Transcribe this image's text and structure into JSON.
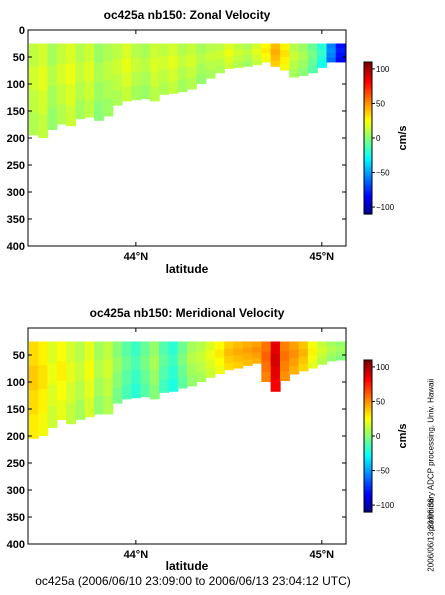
{
  "chart_data": [
    {
      "type": "heatmap",
      "title": "oc425a nb150: Zonal Velocity",
      "xlabel": "latitude",
      "ylabel": "",
      "x_ticks": [
        "44°N",
        "45°N"
      ],
      "y_ticks": [
        "0",
        "50",
        "100",
        "150",
        "200",
        "250",
        "300",
        "350",
        "400"
      ],
      "ylim": [
        400,
        0
      ],
      "colorbar": {
        "label": "cm/s",
        "ticks": [
          "100",
          "50",
          "0",
          "−50",
          "−100"
        ],
        "range": [
          -110,
          110
        ]
      },
      "columns": [
        {
          "lat": 43.45,
          "top": 25,
          "bottom": 195,
          "u": 14
        },
        {
          "lat": 43.5,
          "top": 25,
          "bottom": 200,
          "u": 18
        },
        {
          "lat": 43.55,
          "top": 25,
          "bottom": 185,
          "u": 8
        },
        {
          "lat": 43.6,
          "top": 25,
          "bottom": 175,
          "u": 15
        },
        {
          "lat": 43.65,
          "top": 25,
          "bottom": 178,
          "u": 20
        },
        {
          "lat": 43.7,
          "top": 25,
          "bottom": 165,
          "u": 11
        },
        {
          "lat": 43.75,
          "top": 25,
          "bottom": 162,
          "u": 17
        },
        {
          "lat": 43.8,
          "top": 25,
          "bottom": 168,
          "u": 6
        },
        {
          "lat": 43.85,
          "top": 25,
          "bottom": 160,
          "u": 10
        },
        {
          "lat": 43.9,
          "top": 25,
          "bottom": 140,
          "u": 13
        },
        {
          "lat": 43.95,
          "top": 25,
          "bottom": 132,
          "u": 19
        },
        {
          "lat": 44.0,
          "top": 25,
          "bottom": 130,
          "u": 12
        },
        {
          "lat": 44.05,
          "top": 25,
          "bottom": 128,
          "u": 9
        },
        {
          "lat": 44.1,
          "top": 25,
          "bottom": 132,
          "u": 16
        },
        {
          "lat": 44.15,
          "top": 25,
          "bottom": 120,
          "u": 14
        },
        {
          "lat": 44.2,
          "top": 25,
          "bottom": 118,
          "u": 18
        },
        {
          "lat": 44.25,
          "top": 25,
          "bottom": 115,
          "u": 11
        },
        {
          "lat": 44.3,
          "top": 25,
          "bottom": 110,
          "u": 15
        },
        {
          "lat": 44.35,
          "top": 25,
          "bottom": 100,
          "u": 8
        },
        {
          "lat": 44.4,
          "top": 25,
          "bottom": 90,
          "u": 12
        },
        {
          "lat": 44.45,
          "top": 25,
          "bottom": 80,
          "u": 13
        },
        {
          "lat": 44.5,
          "top": 25,
          "bottom": 72,
          "u": 20
        },
        {
          "lat": 44.55,
          "top": 25,
          "bottom": 70,
          "u": 14
        },
        {
          "lat": 44.6,
          "top": 25,
          "bottom": 68,
          "u": 10
        },
        {
          "lat": 44.65,
          "top": 25,
          "bottom": 65,
          "u": 18
        },
        {
          "lat": 44.7,
          "top": 25,
          "bottom": 60,
          "u": 28
        },
        {
          "lat": 44.75,
          "top": 25,
          "bottom": 68,
          "u": 42
        },
        {
          "lat": 44.8,
          "top": 25,
          "bottom": 75,
          "u": 30
        },
        {
          "lat": 44.85,
          "top": 25,
          "bottom": 88,
          "u": 12
        },
        {
          "lat": 44.9,
          "top": 25,
          "bottom": 85,
          "u": 6
        },
        {
          "lat": 44.95,
          "top": 25,
          "bottom": 80,
          "u": -5
        },
        {
          "lat": 45.0,
          "top": 25,
          "bottom": 70,
          "u": -20
        },
        {
          "lat": 45.05,
          "top": 25,
          "bottom": 60,
          "u": -55
        },
        {
          "lat": 45.1,
          "top": 25,
          "bottom": 60,
          "u": -80
        }
      ]
    },
    {
      "type": "heatmap",
      "title": "oc425a nb150: Meridional Velocity",
      "xlabel": "latitude",
      "ylabel": "",
      "x_ticks": [
        "44°N",
        "45°N"
      ],
      "y_ticks": [
        "50",
        "100",
        "150",
        "200",
        "250",
        "300",
        "350",
        "400"
      ],
      "ylim": [
        400,
        0
      ],
      "colorbar": {
        "label": "cm/s",
        "ticks": [
          "100",
          "50",
          "0",
          "−50",
          "−100"
        ],
        "range": [
          -110,
          110
        ]
      },
      "columns": [
        {
          "lat": 43.45,
          "top": 25,
          "bottom": 205,
          "v": 35
        },
        {
          "lat": 43.5,
          "top": 25,
          "bottom": 200,
          "v": 30
        },
        {
          "lat": 43.55,
          "top": 25,
          "bottom": 185,
          "v": 20
        },
        {
          "lat": 43.6,
          "top": 25,
          "bottom": 170,
          "v": 26
        },
        {
          "lat": 43.65,
          "top": 25,
          "bottom": 178,
          "v": 18
        },
        {
          "lat": 43.7,
          "top": 25,
          "bottom": 170,
          "v": 12
        },
        {
          "lat": 43.75,
          "top": 25,
          "bottom": 165,
          "v": 22
        },
        {
          "lat": 43.8,
          "top": 25,
          "bottom": 160,
          "v": 8
        },
        {
          "lat": 43.85,
          "top": 25,
          "bottom": 160,
          "v": 14
        },
        {
          "lat": 43.9,
          "top": 25,
          "bottom": 140,
          "v": 2
        },
        {
          "lat": 43.95,
          "top": 25,
          "bottom": 132,
          "v": -8
        },
        {
          "lat": 44.0,
          "top": 25,
          "bottom": 130,
          "v": -15
        },
        {
          "lat": 44.05,
          "top": 25,
          "bottom": 128,
          "v": -5
        },
        {
          "lat": 44.1,
          "top": 25,
          "bottom": 132,
          "v": 5
        },
        {
          "lat": 44.15,
          "top": 25,
          "bottom": 120,
          "v": -10
        },
        {
          "lat": 44.2,
          "top": 25,
          "bottom": 118,
          "v": -18
        },
        {
          "lat": 44.25,
          "top": 25,
          "bottom": 112,
          "v": -4
        },
        {
          "lat": 44.3,
          "top": 25,
          "bottom": 108,
          "v": 8
        },
        {
          "lat": 44.35,
          "top": 25,
          "bottom": 100,
          "v": 12
        },
        {
          "lat": 44.4,
          "top": 25,
          "bottom": 92,
          "v": 20
        },
        {
          "lat": 44.45,
          "top": 25,
          "bottom": 85,
          "v": 28
        },
        {
          "lat": 44.5,
          "top": 25,
          "bottom": 78,
          "v": 38
        },
        {
          "lat": 44.55,
          "top": 25,
          "bottom": 75,
          "v": 42
        },
        {
          "lat": 44.6,
          "top": 25,
          "bottom": 70,
          "v": 45
        },
        {
          "lat": 44.65,
          "top": 25,
          "bottom": 66,
          "v": 48
        },
        {
          "lat": 44.7,
          "top": 25,
          "bottom": 100,
          "v": 58
        },
        {
          "lat": 44.75,
          "top": 25,
          "bottom": 118,
          "v": 88
        },
        {
          "lat": 44.8,
          "top": 25,
          "bottom": 98,
          "v": 55
        },
        {
          "lat": 44.85,
          "top": 25,
          "bottom": 86,
          "v": 48
        },
        {
          "lat": 44.9,
          "top": 25,
          "bottom": 80,
          "v": 40
        },
        {
          "lat": 44.95,
          "top": 25,
          "bottom": 75,
          "v": 25
        },
        {
          "lat": 45.0,
          "top": 25,
          "bottom": 68,
          "v": 15
        },
        {
          "lat": 45.05,
          "top": 25,
          "bottom": 62,
          "v": 8
        },
        {
          "lat": 45.1,
          "top": 25,
          "bottom": 60,
          "v": 4
        }
      ]
    }
  ],
  "footer": "oc425a (2006/06/10 23:09:00 to 2006/06/13 23:04:12 UTC)",
  "side_note": "preliminary ADCP processing,   Univ. Hawaii",
  "stamp": "2006/06/13 23:06:36"
}
